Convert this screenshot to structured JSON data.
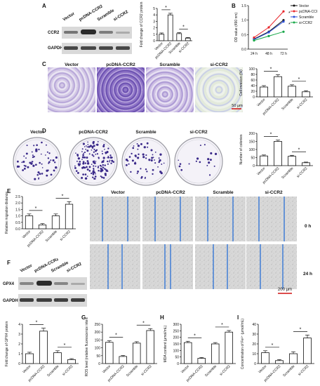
{
  "panels": {
    "A": {
      "letter": "A",
      "lanes": [
        "Vector",
        "pcDNA-CCR2",
        "Scramble",
        "si-CCR2"
      ],
      "rows": [
        "CCR2",
        "GAPDH"
      ],
      "chart_data": {
        "type": "bar",
        "categories": [
          "Vector",
          "pcDNA-CCR2",
          "Scramble",
          "si-CCR2"
        ],
        "values": [
          1.0,
          4.0,
          1.1,
          0.4
        ],
        "errors": [
          0.2,
          0.25,
          0.15,
          0.1
        ],
        "ylabel": "Fold change of CCR2 protein",
        "ylim": [
          0,
          5
        ],
        "yticks": [
          "0",
          "1",
          "2",
          "3",
          "4",
          "5"
        ],
        "sig": [
          "*",
          "*"
        ]
      }
    },
    "B": {
      "letter": "B",
      "chart_data": {
        "type": "line",
        "x": [
          "24 h",
          "48 h",
          "72 h"
        ],
        "ylabel": "OD value (490 nm)",
        "ylim": [
          0,
          1.5
        ],
        "yticks": [
          "0.0",
          "0.5",
          "1.0",
          "1.5"
        ],
        "series": [
          {
            "name": "Vector",
            "color": "#111111",
            "values": [
              0.35,
              0.6,
              1.0
            ]
          },
          {
            "name": "pcDNA-CCR2",
            "color": "#e8262b",
            "values": [
              0.4,
              0.75,
              1.3
            ]
          },
          {
            "name": "Scramble",
            "color": "#2b4fd8",
            "values": [
              0.33,
              0.58,
              0.95
            ]
          },
          {
            "name": "si-CCR2",
            "color": "#19a84a",
            "values": [
              0.3,
              0.45,
              0.6
            ]
          }
        ],
        "sig": [
          "*",
          "*"
        ]
      }
    },
    "C": {
      "letter": "C",
      "images": [
        "Vector",
        "pcDNA-CCR2",
        "Scramble",
        "si-CCR2"
      ],
      "scalebar": "50 μm",
      "chart_data": {
        "type": "bar",
        "categories": [
          "Vector",
          "pcDNA-CCR2",
          "Scramble",
          "si-CCR2"
        ],
        "values": [
          35,
          72,
          38,
          18
        ],
        "errors": [
          5,
          7,
          5,
          4
        ],
        "ylabel": "Cell invasion (%)",
        "ylim": [
          0,
          100
        ],
        "yticks": [
          "0",
          "20",
          "40",
          "60",
          "80",
          "100"
        ],
        "sig": [
          "*",
          "*"
        ]
      }
    },
    "D": {
      "letter": "D",
      "images": [
        "Vector",
        "pcDNA-CCR2",
        "Scramble",
        "si-CCR2"
      ],
      "chart_data": {
        "type": "bar",
        "categories": [
          "Vector",
          "pcDNA-CCR2",
          "Scramble",
          "si-CCR2"
        ],
        "values": [
          60,
          150,
          58,
          18
        ],
        "errors": [
          6,
          8,
          6,
          4
        ],
        "ylabel": "Number of colonies",
        "ylim": [
          0,
          200
        ],
        "yticks": [
          "0",
          "50",
          "100",
          "150",
          "200"
        ],
        "sig": [
          "*",
          "*"
        ]
      }
    },
    "E": {
      "letter": "E",
      "columns": [
        "Vector",
        "pcDNA-CCR2",
        "Scramble",
        "si-CCR2"
      ],
      "times": [
        "0 h",
        "24 h"
      ],
      "scalebar": "200 μm",
      "chart_data": {
        "type": "bar",
        "categories": [
          "Vector",
          "pcDNA-CCR2",
          "Scramble",
          "si-CCR2"
        ],
        "values": [
          1.0,
          0.3,
          1.0,
          1.9
        ],
        "errors": [
          0.15,
          0.1,
          0.15,
          0.2
        ],
        "ylabel": "Relative migration distance",
        "ylim": [
          0,
          2.5
        ],
        "yticks": [
          "0.0",
          "0.5",
          "1.0",
          "1.5",
          "2.0",
          "2.5"
        ],
        "sig": [
          "*",
          "*"
        ]
      }
    },
    "F": {
      "letter": "F",
      "lanes": [
        "Vector",
        "pcDNA-CCR2",
        "Scramble",
        "si-CCR2"
      ],
      "rows": [
        "GPX4",
        "GAPDH"
      ],
      "chart_data": {
        "type": "bar",
        "categories": [
          "Vector",
          "pcDNA-CCR2",
          "Scramble",
          "si-CCR2"
        ],
        "values": [
          1.0,
          3.3,
          1.1,
          0.4
        ],
        "errors": [
          0.15,
          0.3,
          0.2,
          0.1
        ],
        "ylabel": "Fold change of GPX4 protein",
        "ylim": [
          0,
          4
        ],
        "yticks": [
          "0",
          "1",
          "2",
          "3",
          "4"
        ],
        "sig": [
          "*",
          "*"
        ]
      }
    },
    "G": {
      "letter": "G",
      "chart_data": {
        "type": "bar",
        "categories": [
          "Vector",
          "pcDNA-CCR2",
          "Scramble",
          "si-CCR2"
        ],
        "values": [
          135,
          45,
          130,
          210
        ],
        "errors": [
          10,
          6,
          9,
          12
        ],
        "ylabel": "ROS level (relative fluorescence intensity)",
        "ylim": [
          0,
          250
        ],
        "yticks": [
          "0",
          "50",
          "100",
          "150",
          "200",
          "250"
        ],
        "sig": [
          "*",
          "*"
        ]
      }
    },
    "H": {
      "letter": "H",
      "chart_data": {
        "type": "bar",
        "categories": [
          "Vector",
          "pcDNA-CCR2",
          "Scramble",
          "si-CCR2"
        ],
        "values": [
          160,
          40,
          150,
          240
        ],
        "errors": [
          10,
          6,
          10,
          12
        ],
        "ylabel": "MDA content (μmol/mL)",
        "ylim": [
          0,
          300
        ],
        "yticks": [
          "0",
          "50",
          "100",
          "150",
          "200",
          "250",
          "300"
        ],
        "sig": [
          "*",
          "*"
        ]
      }
    },
    "I": {
      "letter": "I",
      "chart_data": {
        "type": "bar",
        "categories": [
          "Vector",
          "pcDNA-CCR2",
          "Scramble",
          "si-CCR2"
        ],
        "values": [
          11,
          3,
          10,
          26
        ],
        "errors": [
          2,
          1,
          2,
          3
        ],
        "ylabel": "Concentration of Fe²⁺ (μmol/mL)",
        "ylim": [
          0,
          40
        ],
        "yticks": [
          "0",
          "10",
          "20",
          "30",
          "40"
        ],
        "sig": [
          "*",
          "*"
        ]
      }
    }
  }
}
